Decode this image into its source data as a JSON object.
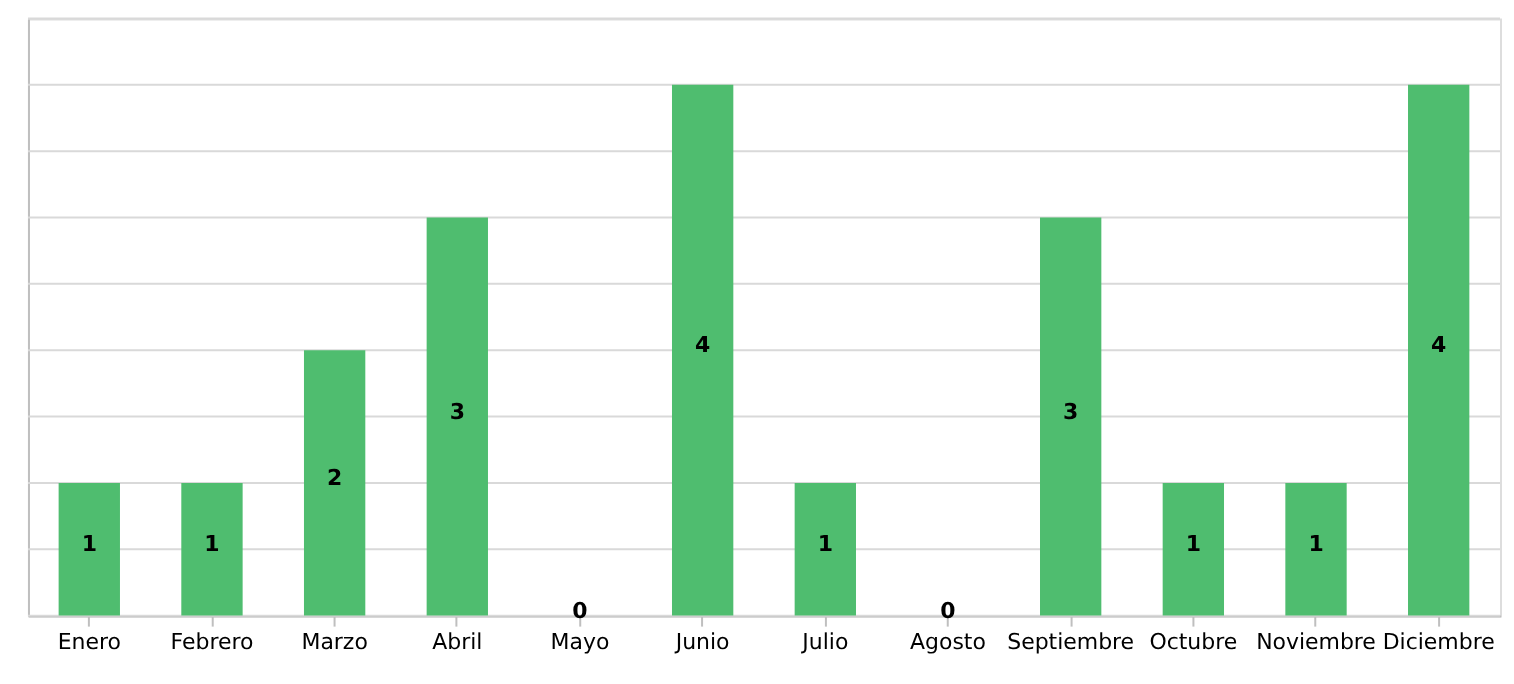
{
  "chart_data": {
    "type": "bar",
    "categories": [
      "Enero",
      "Febrero",
      "Marzo",
      "Abril",
      "Mayo",
      "Junio",
      "Julio",
      "Agosto",
      "Septiembre",
      "Octubre",
      "Noviembre",
      "Diciembre"
    ],
    "values": [
      1,
      1,
      2,
      3,
      0,
      4,
      1,
      0,
      3,
      1,
      1,
      4
    ],
    "color": "#4fbd6f",
    "ylim": [
      0,
      4.5
    ],
    "yticks": [
      {
        "value": 0,
        "label": null
      },
      {
        "value": 0.5,
        "label": null
      },
      {
        "value": 1,
        "label": null
      },
      {
        "value": 1.5,
        "label": null
      },
      {
        "value": 2,
        "label": null
      },
      {
        "value": 2.5,
        "label": null
      },
      {
        "value": 3,
        "label": null
      },
      {
        "value": 3.5,
        "label": null
      },
      {
        "value": 4,
        "label": null
      },
      {
        "value": 4.5,
        "label": null
      }
    ],
    "grid": "y",
    "tick_labels": "x",
    "data_labels": true
  }
}
